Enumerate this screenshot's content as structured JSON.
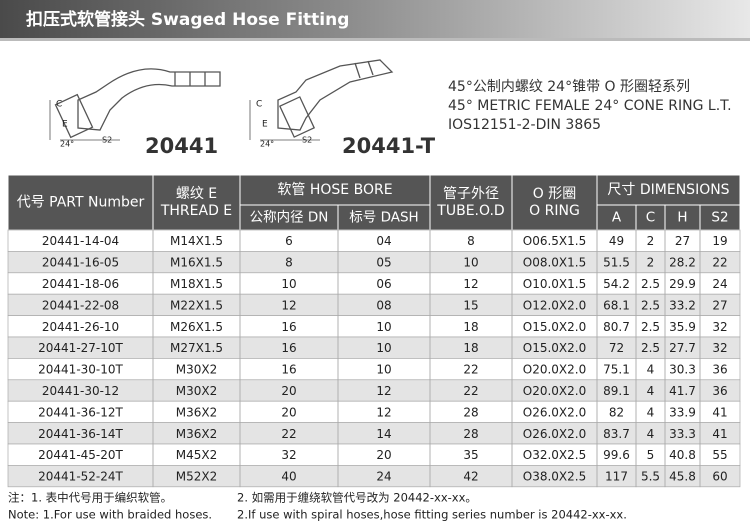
{
  "header": {
    "title": "扣压式软管接头 Swaged Hose Fitting"
  },
  "products": [
    {
      "label": "20441",
      "dims": [
        "C",
        "E",
        "24°",
        "S2"
      ]
    },
    {
      "label": "20441-T",
      "dims": [
        "C",
        "E",
        "24°",
        "S2"
      ]
    }
  ],
  "description": [
    "45°公制内螺纹 24°锥带 O 形圈轻系列",
    "45° METRIC FEMALE 24° CONE RING L.T.",
    "IOS12151-2-DIN 3865"
  ],
  "table": {
    "header_top": [
      {
        "lines": [
          "代号 PART Number"
        ]
      },
      {
        "lines": [
          "螺纹 E",
          "THREAD E"
        ]
      },
      {
        "lines": [
          "软管 HOSE BORE"
        ]
      },
      {
        "lines": [
          "管子外径",
          "TUBE.O.D"
        ]
      },
      {
        "lines": [
          "O 形圈",
          "O RING"
        ]
      },
      {
        "lines": [
          "尺寸 DIMENSIONS"
        ]
      }
    ],
    "header_sub": [
      "公称内径 DN",
      "标号 DASH",
      "A",
      "C",
      "H",
      "S2"
    ],
    "rows": [
      [
        "20441-14-04",
        "M14X1.5",
        "6",
        "04",
        "8",
        "O06.5X1.5",
        "49",
        "2",
        "27",
        "19"
      ],
      [
        "20441-16-05",
        "M16X1.5",
        "8",
        "05",
        "10",
        "O08.0X1.5",
        "51.5",
        "2",
        "28.2",
        "22"
      ],
      [
        "20441-18-06",
        "M18X1.5",
        "10",
        "06",
        "12",
        "O10.0X1.5",
        "54.2",
        "2.5",
        "29.9",
        "24"
      ],
      [
        "20441-22-08",
        "M22X1.5",
        "12",
        "08",
        "15",
        "O12.0X2.0",
        "68.1",
        "2.5",
        "33.2",
        "27"
      ],
      [
        "20441-26-10",
        "M26X1.5",
        "16",
        "10",
        "18",
        "O15.0X2.0",
        "80.7",
        "2.5",
        "35.9",
        "32"
      ],
      [
        "20441-27-10T",
        "M27X1.5",
        "16",
        "10",
        "18",
        "O15.0X2.0",
        "72",
        "2.5",
        "27.7",
        "32"
      ],
      [
        "20441-30-10T",
        "M30X2",
        "16",
        "10",
        "22",
        "O20.0X2.0",
        "75.1",
        "4",
        "30.3",
        "36"
      ],
      [
        "20441-30-12",
        "M30X2",
        "20",
        "12",
        "22",
        "O20.0X2.0",
        "89.1",
        "4",
        "41.7",
        "36"
      ],
      [
        "20441-36-12T",
        "M36X2",
        "20",
        "12",
        "28",
        "O26.0X2.0",
        "82",
        "4",
        "33.9",
        "41"
      ],
      [
        "20441-36-14T",
        "M36X2",
        "22",
        "14",
        "28",
        "O26.0X2.0",
        "83.7",
        "4",
        "33.3",
        "41"
      ],
      [
        "20441-45-20T",
        "M45X2",
        "32",
        "20",
        "35",
        "O32.0X2.5",
        "99.6",
        "5",
        "40.8",
        "55"
      ],
      [
        "20441-52-24T",
        "M52X2",
        "40",
        "24",
        "42",
        "O38.0X2.5",
        "117",
        "5.5",
        "45.8",
        "60"
      ]
    ]
  },
  "notes": [
    [
      "注：1. 表中代号用于编织软管。",
      "2. 如需用于缠绕软管代号改为 20442-xx-xx。"
    ],
    [
      "Note: 1.For use with braided hoses.",
      "2.If use with spiral hoses,hose fitting series number is 20442-xx-xx."
    ]
  ]
}
